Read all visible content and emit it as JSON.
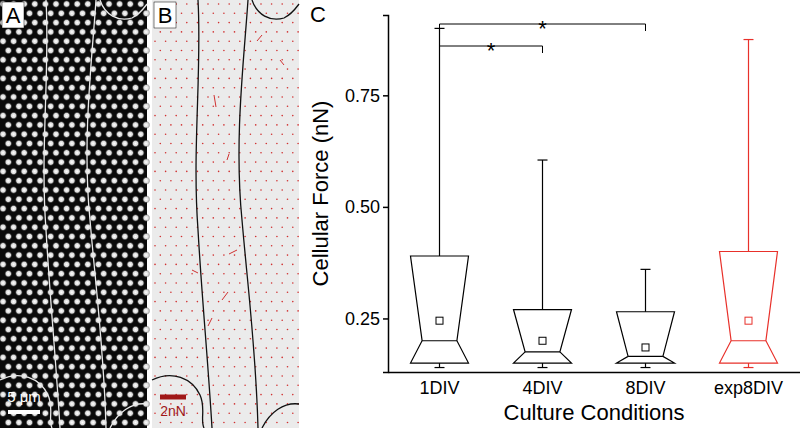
{
  "chart_data": [
    {
      "type": "image",
      "panel": "A",
      "scale_bar": "5 μm"
    },
    {
      "type": "vector_field",
      "panel": "B",
      "scale_bar": "2nN"
    },
    {
      "type": "box",
      "panel": "C",
      "x_label": "Culture Conditions",
      "y_label": "Cellular Force (nN)",
      "categories": [
        "1DIV",
        "4DIV",
        "8DIV",
        "exp8DIV"
      ],
      "colors": [
        "#000000",
        "#000000",
        "#000000",
        "#e8302a"
      ],
      "marker": "square",
      "boxes": [
        {
          "min": 0.14,
          "q1": 0.15,
          "median": 0.2,
          "q3": 0.39,
          "max": 0.9,
          "mean": 0.245
        },
        {
          "min": 0.14,
          "q1": 0.15,
          "median": 0.175,
          "q3": 0.27,
          "max": 0.605,
          "mean": 0.2
        },
        {
          "min": 0.14,
          "q1": 0.15,
          "median": 0.165,
          "q3": 0.265,
          "max": 0.36,
          "mean": 0.185
        },
        {
          "min": 0.14,
          "q1": 0.15,
          "median": 0.2,
          "q3": 0.4,
          "max": 0.875,
          "mean": 0.245
        }
      ],
      "annotations": [
        {
          "from": "1DIV",
          "to": "4DIV",
          "text": "*"
        },
        {
          "from": "1DIV",
          "to": "8DIV",
          "text": "*"
        }
      ],
      "ylim": [
        0.13,
        0.93
      ],
      "yticks": [
        0.25,
        {
          "value": 0.5,
          "label": "0.50"
        },
        0.75
      ]
    }
  ]
}
